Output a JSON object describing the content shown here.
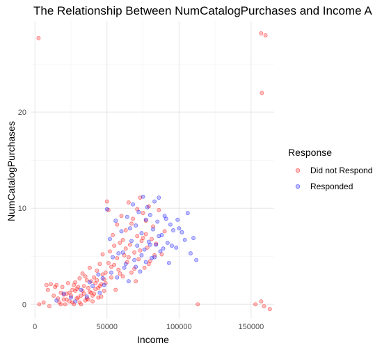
{
  "chart_data": {
    "type": "scatter",
    "title": "The Relationship Between NumCatalogPurchases and Income A",
    "xlabel": "Income",
    "ylabel": "NumCatalogPurchases",
    "xlim": [
      -3000,
      166000
    ],
    "ylim": [
      -1.5,
      29.5
    ],
    "x_ticks": [
      0,
      50000,
      100000,
      150000
    ],
    "x_tick_labels": [
      "0",
      "50000",
      "100000",
      "150000"
    ],
    "y_ticks": [
      0,
      10,
      20
    ],
    "y_tick_labels": [
      "0",
      "10",
      "20"
    ],
    "grid": true,
    "legend": {
      "title": "Response",
      "position": "right"
    },
    "point_alpha": 0.25,
    "series": [
      {
        "name": "Did not Respond",
        "color": "#ff0000",
        "points": [
          [
            2500,
            27.7
          ],
          [
            157000,
            28.2
          ],
          [
            160000,
            28
          ],
          [
            157500,
            22
          ],
          [
            113000,
            0
          ],
          [
            153000,
            0
          ],
          [
            157000,
            0.3
          ],
          [
            159000,
            -0.2
          ],
          [
            163000,
            -0.5
          ],
          [
            3000,
            0
          ],
          [
            6000,
            0.2
          ],
          [
            8000,
            2
          ],
          [
            9000,
            1.5
          ],
          [
            10000,
            -0.2
          ],
          [
            11000,
            2.1
          ],
          [
            13000,
            0.9
          ],
          [
            14000,
            1.8
          ],
          [
            15000,
            2
          ],
          [
            17000,
            0.2
          ],
          [
            18000,
            1.2
          ],
          [
            19000,
            1.8
          ],
          [
            20000,
            0.5
          ],
          [
            21000,
            0
          ],
          [
            22000,
            1.1
          ],
          [
            23000,
            2.2
          ],
          [
            24000,
            0.3
          ],
          [
            25000,
            0.9
          ],
          [
            26000,
            1.5
          ],
          [
            27000,
            0
          ],
          [
            28000,
            2.3
          ],
          [
            29000,
            0.6
          ],
          [
            30000,
            1.8
          ],
          [
            31000,
            0.2
          ],
          [
            32000,
            0.9
          ],
          [
            33000,
            3.2
          ],
          [
            34000,
            1.1
          ],
          [
            35000,
            0.4
          ],
          [
            36000,
            2.5
          ],
          [
            37000,
            1.7
          ],
          [
            38000,
            3.8
          ],
          [
            39000,
            1.2
          ],
          [
            40000,
            0.3
          ],
          [
            41000,
            2.8
          ],
          [
            42000,
            1.6
          ],
          [
            43000,
            3.5
          ],
          [
            44000,
            0.7
          ],
          [
            45000,
            4.2
          ],
          [
            46000,
            2.1
          ],
          [
            47000,
            5.2
          ],
          [
            48000,
            1.4
          ],
          [
            49000,
            3.3
          ],
          [
            50000,
            10.7
          ],
          [
            51000,
            9.8
          ],
          [
            52000,
            5.5
          ],
          [
            53000,
            2.8
          ],
          [
            54000,
            7.2
          ],
          [
            55000,
            4.1
          ],
          [
            56000,
            1.5
          ],
          [
            57000,
            8.3
          ],
          [
            58000,
            3.6
          ],
          [
            59000,
            6.4
          ],
          [
            60000,
            9.2
          ],
          [
            61000,
            2.9
          ],
          [
            62000,
            5.1
          ],
          [
            63000,
            7.7
          ],
          [
            64000,
            4.4
          ],
          [
            65000,
            10.6
          ],
          [
            66000,
            6.2
          ],
          [
            67000,
            3.3
          ],
          [
            68000,
            8.9
          ],
          [
            69000,
            5.4
          ],
          [
            70000,
            2.4
          ],
          [
            71000,
            7.1
          ],
          [
            72000,
            4.7
          ],
          [
            73000,
            11.1
          ],
          [
            74000,
            6.6
          ],
          [
            75000,
            9.5
          ],
          [
            76000,
            3.8
          ],
          [
            77000,
            7.3
          ],
          [
            78000,
            5.9
          ],
          [
            79000,
            10.2
          ],
          [
            80000,
            4.5
          ],
          [
            82000,
            8.1
          ],
          [
            84000,
            6.3
          ],
          [
            86000,
            9.8
          ],
          [
            88000,
            5.2
          ],
          [
            90000,
            7.6
          ],
          [
            20000,
            1
          ],
          [
            22000,
            0.5
          ],
          [
            24000,
            1.2
          ],
          [
            26000,
            0.2
          ],
          [
            28000,
            1.4
          ],
          [
            30000,
            0.7
          ],
          [
            32000,
            0
          ],
          [
            34000,
            1.9
          ],
          [
            36000,
            0.6
          ],
          [
            38000,
            1.3
          ],
          [
            40000,
            0.9
          ],
          [
            42000,
            2.2
          ],
          [
            44000,
            1.7
          ],
          [
            46000,
            0.8
          ],
          [
            48000,
            2.6
          ],
          [
            16000,
            0.6
          ],
          [
            18000,
            0
          ],
          [
            27000,
            2
          ],
          [
            29000,
            1.6
          ],
          [
            31000,
            2.7
          ],
          [
            33000,
            1.4
          ],
          [
            35000,
            2.9
          ],
          [
            37000,
            0.5
          ],
          [
            39000,
            2.4
          ],
          [
            41000,
            1.1
          ],
          [
            43000,
            2.5
          ],
          [
            45000,
            1.9
          ],
          [
            47000,
            3.1
          ],
          [
            49000,
            2.2
          ],
          [
            51000,
            4.3
          ],
          [
            53000,
            3.9
          ],
          [
            55000,
            6.1
          ],
          [
            57000,
            4.8
          ],
          [
            59000,
            3.2
          ],
          [
            61000,
            6.7
          ],
          [
            63000,
            5.8
          ],
          [
            65000,
            4.9
          ],
          [
            67000,
            8.4
          ],
          [
            69000,
            3.7
          ],
          [
            71000,
            9.9
          ],
          [
            73000,
            5.6
          ],
          [
            75000,
            6.9
          ],
          [
            77000,
            8.7
          ],
          [
            79000,
            4.2
          ],
          [
            81000,
            6.8
          ],
          [
            83000,
            5.1
          ]
        ]
      },
      {
        "name": "Responded",
        "color": "#0000ff",
        "points": [
          [
            15000,
            0.4
          ],
          [
            20000,
            1.1
          ],
          [
            25000,
            0.7
          ],
          [
            28000,
            0.3
          ],
          [
            32000,
            1.5
          ],
          [
            36000,
            0.8
          ],
          [
            38000,
            2.3
          ],
          [
            40000,
            1.9
          ],
          [
            44000,
            3.1
          ],
          [
            47000,
            2.7
          ],
          [
            50000,
            9.9
          ],
          [
            52000,
            6.8
          ],
          [
            54000,
            4.9
          ],
          [
            56000,
            8.7
          ],
          [
            58000,
            5.3
          ],
          [
            60000,
            7.6
          ],
          [
            62000,
            3.8
          ],
          [
            64000,
            9.1
          ],
          [
            65000,
            2.4
          ],
          [
            66000,
            7.9
          ],
          [
            68000,
            10.4
          ],
          [
            69000,
            4.6
          ],
          [
            70000,
            8.2
          ],
          [
            71000,
            6.1
          ],
          [
            72000,
            9.6
          ],
          [
            73000,
            3.4
          ],
          [
            74000,
            7.4
          ],
          [
            75000,
            11.2
          ],
          [
            76000,
            5.7
          ],
          [
            77000,
            8.8
          ],
          [
            78000,
            10.1
          ],
          [
            79000,
            6.5
          ],
          [
            80000,
            9.3
          ],
          [
            81000,
            4.8
          ],
          [
            82000,
            7.8
          ],
          [
            83000,
            10.7
          ],
          [
            84000,
            6.2
          ],
          [
            85000,
            8.6
          ],
          [
            86000,
            11.1
          ],
          [
            87000,
            5.5
          ],
          [
            88000,
            7.2
          ],
          [
            90000,
            9.2
          ],
          [
            92000,
            6.4
          ],
          [
            94000,
            8.3
          ],
          [
            96000,
            7.7
          ],
          [
            98000,
            5.9
          ],
          [
            100000,
            7.9
          ],
          [
            102000,
            7.5
          ],
          [
            104000,
            6.7
          ],
          [
            106000,
            9.5
          ],
          [
            108000,
            5.3
          ],
          [
            110000,
            6.9
          ],
          [
            112000,
            4.6
          ],
          [
            45000,
            1.2
          ],
          [
            48000,
            2
          ],
          [
            53000,
            3.3
          ],
          [
            57000,
            2.8
          ],
          [
            61000,
            5.4
          ],
          [
            63000,
            4.2
          ],
          [
            67000,
            6.6
          ],
          [
            70000,
            3.9
          ],
          [
            74000,
            5.1
          ],
          [
            77000,
            4.4
          ],
          [
            80000,
            6.2
          ],
          [
            83000,
            4.9
          ],
          [
            86000,
            7.1
          ],
          [
            89000,
            5.8
          ],
          [
            91000,
            8.9
          ],
          [
            93000,
            4.3
          ],
          [
            95000,
            6.1
          ],
          [
            99000,
            8.8
          ]
        ]
      }
    ]
  }
}
